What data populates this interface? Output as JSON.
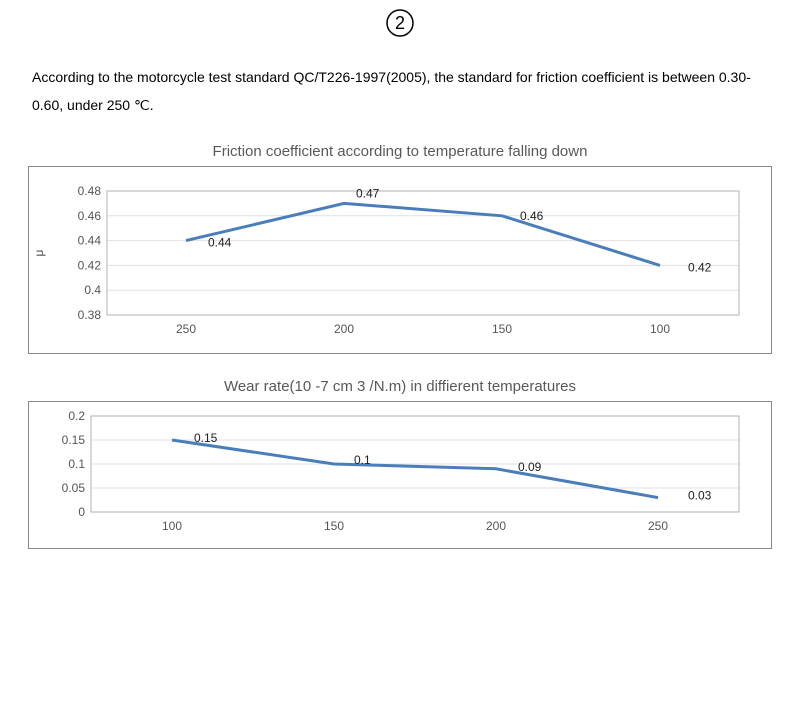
{
  "page_number": "2",
  "description": "According to the motorcycle test standard QC/T226-1997(2005), the standard for friction coefficient is between 0.30-0.60, under 250 ℃.",
  "chart1": {
    "type": "line",
    "title": "Friction coefficient according to temperature falling down",
    "ylabel": "μ",
    "x_categories": [
      "250",
      "200",
      "150",
      "100"
    ],
    "y_ticks": [
      0.38,
      0.4,
      0.42,
      0.44,
      0.46,
      0.48
    ],
    "y_tick_labels": [
      "0.38",
      "0.4",
      "0.42",
      "0.44",
      "0.46",
      "0.48"
    ],
    "ylim": [
      0.38,
      0.48
    ],
    "values": [
      0.44,
      0.47,
      0.46,
      0.42
    ],
    "data_labels": [
      "0.44",
      "0.47",
      "0.46",
      "0.42"
    ],
    "line_color": "#4a7ebb",
    "line_width": 3,
    "grid_color": "#e0e0e0",
    "axis_color": "#b0b0b0",
    "background_color": "#ffffff",
    "label_fontsize": 12,
    "title_fontsize": 15,
    "title_color": "#595959"
  },
  "chart2": {
    "type": "line",
    "title": "Wear rate(10 -7 cm 3 /N.m) in diffierent temperatures",
    "x_categories": [
      "100",
      "150",
      "200",
      "250"
    ],
    "y_ticks": [
      0,
      0.05,
      0.1,
      0.15,
      0.2
    ],
    "y_tick_labels": [
      "0",
      "0.05",
      "0.1",
      "0.15",
      "0.2"
    ],
    "ylim": [
      0,
      0.2
    ],
    "values": [
      0.15,
      0.1,
      0.09,
      0.03
    ],
    "data_labels": [
      "0.15",
      "0.1",
      "0.09",
      "0.03"
    ],
    "line_color": "#4a7ebb",
    "line_width": 3,
    "grid_color": "#e0e0e0",
    "axis_color": "#b0b0b0",
    "background_color": "#ffffff",
    "label_fontsize": 12,
    "title_fontsize": 15,
    "title_color": "#595959"
  }
}
